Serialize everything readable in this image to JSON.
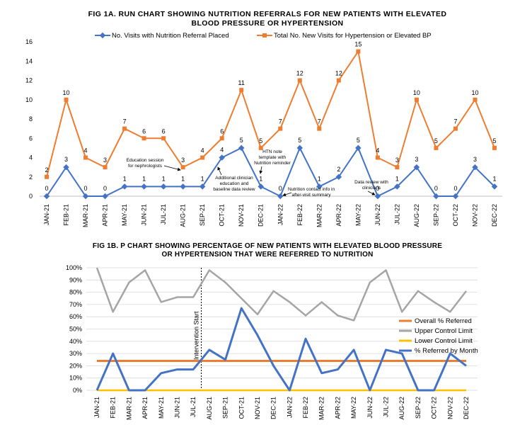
{
  "colors": {
    "blue": "#4472C4",
    "orange": "#ED7D31",
    "gray": "#A5A5A5",
    "gold": "#FFC000",
    "grid": "#D9D9D9"
  },
  "chart_data": [
    {
      "type": "line",
      "title_line1": "FIG 1A. RUN CHART SHOWING NUTRITION REFERRALS FOR NEW PATIENTS WITH ELEVATED",
      "title_line2": "BLOOD PRESSURE OR HYPERTENSION",
      "categories": [
        "JAN-21",
        "FEB-21",
        "MAR-21",
        "APR-21",
        "MAY-21",
        "JUN-21",
        "JUL-21",
        "AUG-21",
        "SEP-21",
        "OCT-21",
        "NOV-21",
        "DEC-21",
        "JAN-22",
        "FEB-22",
        "MAR-22",
        "APR-22",
        "MAY-22",
        "JUN-22",
        "JUL-22",
        "AUG-22",
        "SEP-22",
        "OCT-22",
        "NOV-22",
        "DEC-22"
      ],
      "ylim": [
        0,
        16
      ],
      "yticks": [
        "0",
        "2",
        "4",
        "6",
        "8",
        "10",
        "12",
        "14",
        "16"
      ],
      "grid": false,
      "legend_position": "top",
      "series": [
        {
          "name": "No. Visits with Nutrition Referral Placed",
          "values": [
            0,
            3,
            0,
            0,
            1,
            1,
            1,
            1,
            1,
            4,
            5,
            1,
            0,
            5,
            1,
            2,
            5,
            0,
            1,
            3,
            0,
            0,
            3,
            1
          ],
          "labels": [
            "0",
            "3",
            "0",
            "0",
            "1",
            "1",
            "1",
            "1",
            "1",
            "4",
            "5",
            "1",
            "0",
            "5",
            "1",
            "2",
            "5",
            "0",
            "1",
            "3",
            "0",
            "0",
            "3",
            "1"
          ]
        },
        {
          "name": "Total No. New Visits for Hypertension or Elevated BP",
          "values": [
            2,
            10,
            4,
            3,
            7,
            6,
            6,
            3,
            4,
            6,
            11,
            5,
            7,
            12,
            7,
            12,
            15,
            4,
            3,
            10,
            5,
            7,
            10,
            5
          ],
          "labels": [
            "2",
            "10",
            "4",
            "3",
            "7",
            "6",
            "6",
            "3",
            "4",
            "6",
            "11",
            "5",
            "7",
            "12",
            "7",
            "12",
            "15",
            "4",
            "3",
            "10",
            "5",
            "7",
            "10",
            "5"
          ]
        }
      ],
      "annotations": [
        {
          "lines": [
            "Education session",
            "for nephrologists"
          ]
        },
        {
          "lines": [
            "Additional clinician",
            "education and",
            "baseline data review"
          ]
        },
        {
          "lines": [
            "HTN note",
            "template with",
            "Nutrition reminder"
          ]
        },
        {
          "lines": [
            "Nutrition contact info in",
            "after-visit summary"
          ]
        },
        {
          "lines": [
            "Data review with",
            "clinicians"
          ]
        }
      ]
    },
    {
      "type": "line",
      "title_line1": "FIG 1B. P CHART SHOWING PERCENTAGE OF NEW PATIENTS WITH ELEVATED BLOOD PRESSURE",
      "title_line2": "OR HYPERTENSION THAT WERE REFERRED TO NUTRITION",
      "categories": [
        "JAN-21",
        "FEB-21",
        "MAR-21",
        "APR-21",
        "MAY-21",
        "JUN-21",
        "JUL-21",
        "AUG-21",
        "SEP-21",
        "OCT-21",
        "NOV-21",
        "DEC-21",
        "JAN-22",
        "FEB-22",
        "MAR-22",
        "APR-22",
        "MAY-22",
        "JUN-22",
        "JUL-22",
        "AUG-22",
        "SEP-22",
        "OCT-22",
        "NOV-22",
        "DEC-22"
      ],
      "ylim": [
        0,
        100
      ],
      "yticks": [
        "0%",
        "10%",
        "20%",
        "30%",
        "40%",
        "50%",
        "60%",
        "70%",
        "80%",
        "90%",
        "100%"
      ],
      "grid": true,
      "legend_position": "right",
      "vline_label": "Intervention Start",
      "series": [
        {
          "name": "Overall % Referred",
          "values": [
            24,
            24,
            24,
            24,
            24,
            24,
            24,
            24,
            24,
            24,
            24,
            24,
            24,
            24,
            24,
            24,
            24,
            24,
            24,
            24,
            24,
            24,
            24,
            24
          ]
        },
        {
          "name": "Upper Control Limit",
          "values": [
            100,
            64,
            88,
            98,
            72,
            76,
            76,
            98,
            88,
            75,
            62,
            81,
            72,
            61,
            72,
            61,
            57,
            88,
            98,
            64,
            81,
            72,
            64,
            81
          ]
        },
        {
          "name": "Lower Control Limit",
          "values": [
            0,
            0,
            0,
            0,
            0,
            0,
            0,
            0,
            0,
            0,
            0,
            0,
            0,
            0,
            0,
            0,
            0,
            0,
            0,
            0,
            0,
            0,
            0,
            0
          ]
        },
        {
          "name": "% Referred by Month",
          "values": [
            0,
            30,
            0,
            0,
            14,
            17,
            17,
            33,
            25,
            67,
            45,
            20,
            0,
            42,
            14,
            17,
            33,
            0,
            33,
            30,
            0,
            0,
            30,
            20
          ]
        }
      ]
    }
  ]
}
